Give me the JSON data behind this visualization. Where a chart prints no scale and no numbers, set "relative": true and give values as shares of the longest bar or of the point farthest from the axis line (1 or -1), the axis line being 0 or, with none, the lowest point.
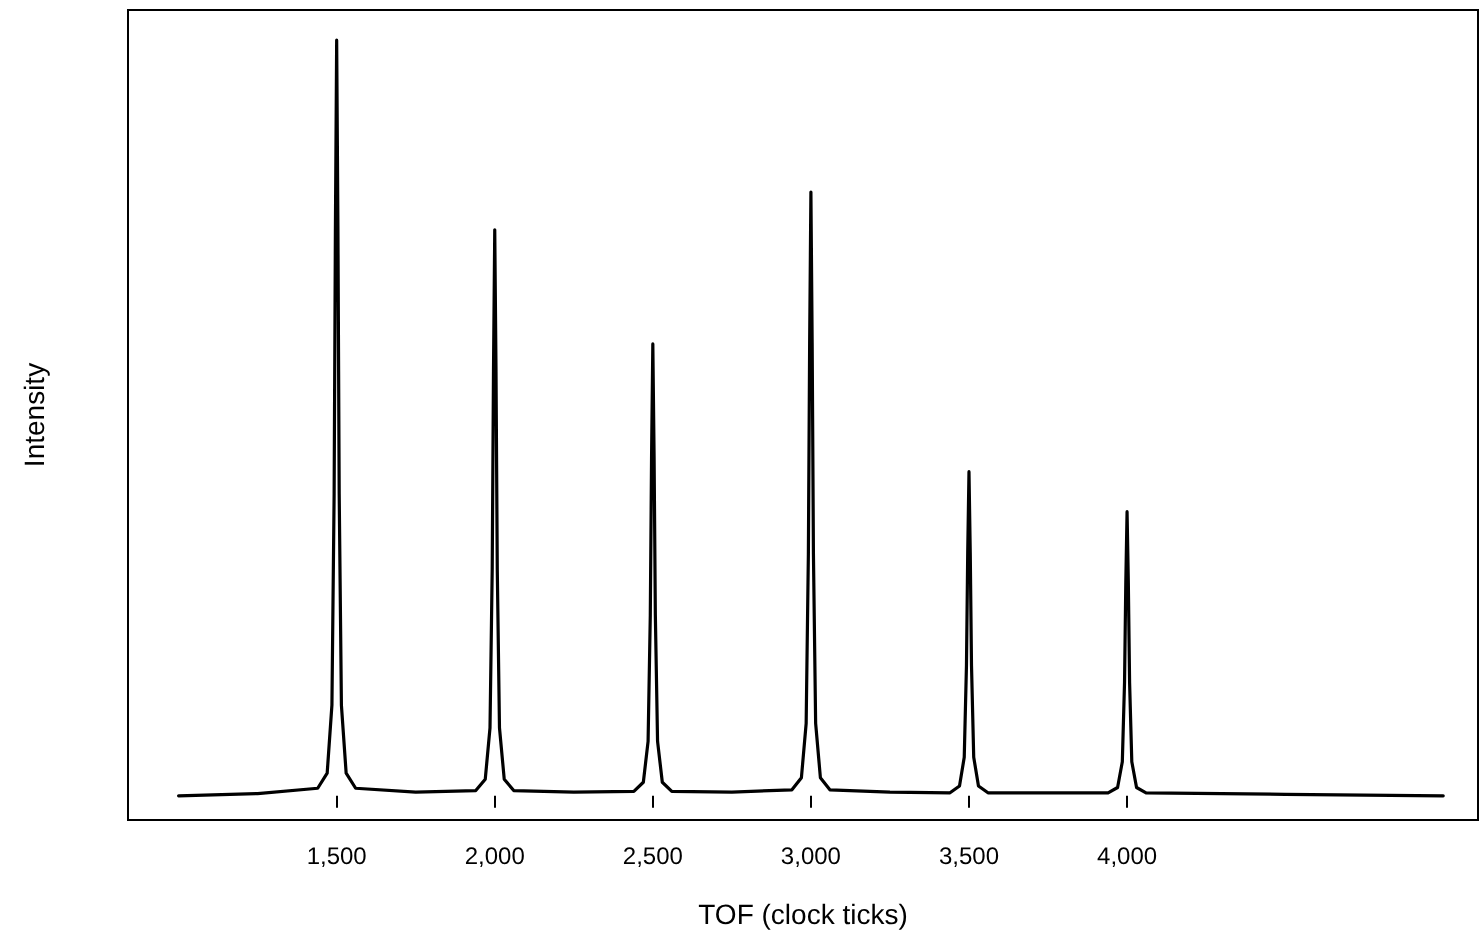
{
  "chart_data": {
    "type": "line",
    "xlabel": "TOF (clock ticks)",
    "ylabel": "Intensity",
    "relative": true,
    "grid": false,
    "marker": "none",
    "line_style": "solid",
    "xlim": [
      840,
      5110
    ],
    "xticks": [
      {
        "value": 1500,
        "label": "1,500"
      },
      {
        "value": 2000,
        "label": "2,000"
      },
      {
        "value": 2500,
        "label": "2,500"
      },
      {
        "value": 3000,
        "label": "3,000"
      },
      {
        "value": 3500,
        "label": "3,500"
      },
      {
        "value": 4000,
        "label": "4,000"
      }
    ],
    "series": [
      {
        "color": "#000000",
        "x": [
          1000,
          1250,
          1440,
          1470,
          1485,
          1492,
          1496,
          1500,
          1504,
          1508,
          1515,
          1530,
          1560,
          1750,
          1940,
          1970,
          1985,
          1992,
          1996,
          2000,
          2004,
          2008,
          2015,
          2030,
          2060,
          2250,
          2440,
          2470,
          2485,
          2492,
          2496,
          2500,
          2504,
          2508,
          2515,
          2530,
          2560,
          2750,
          2940,
          2970,
          2985,
          2992,
          2996,
          3000,
          3004,
          3008,
          3015,
          3030,
          3060,
          3250,
          3440,
          3470,
          3485,
          3492,
          3496,
          3500,
          3504,
          3508,
          3515,
          3530,
          3560,
          3750,
          3940,
          3970,
          3985,
          3992,
          3996,
          4000,
          4004,
          4008,
          4015,
          4030,
          4060,
          4500,
          5000
        ],
        "values": [
          0,
          0.003,
          0.01,
          0.03,
          0.12,
          0.4,
          0.75,
          1,
          0.75,
          0.4,
          0.12,
          0.03,
          0.01,
          0.005,
          0.007,
          0.022,
          0.09,
          0.3,
          0.562,
          0.749,
          0.562,
          0.3,
          0.09,
          0.022,
          0.007,
          0.005,
          0.006,
          0.018,
          0.072,
          0.239,
          0.449,
          0.598,
          0.449,
          0.239,
          0.072,
          0.018,
          0.006,
          0.005,
          0.008,
          0.024,
          0.096,
          0.32,
          0.599,
          0.799,
          0.599,
          0.32,
          0.096,
          0.024,
          0.008,
          0.005,
          0.004,
          0.013,
          0.051,
          0.172,
          0.322,
          0.429,
          0.322,
          0.172,
          0.051,
          0.013,
          0.004,
          0.004,
          0.004,
          0.011,
          0.045,
          0.15,
          0.282,
          0.376,
          0.282,
          0.15,
          0.045,
          0.011,
          0.004,
          0.002,
          0
        ]
      }
    ]
  }
}
